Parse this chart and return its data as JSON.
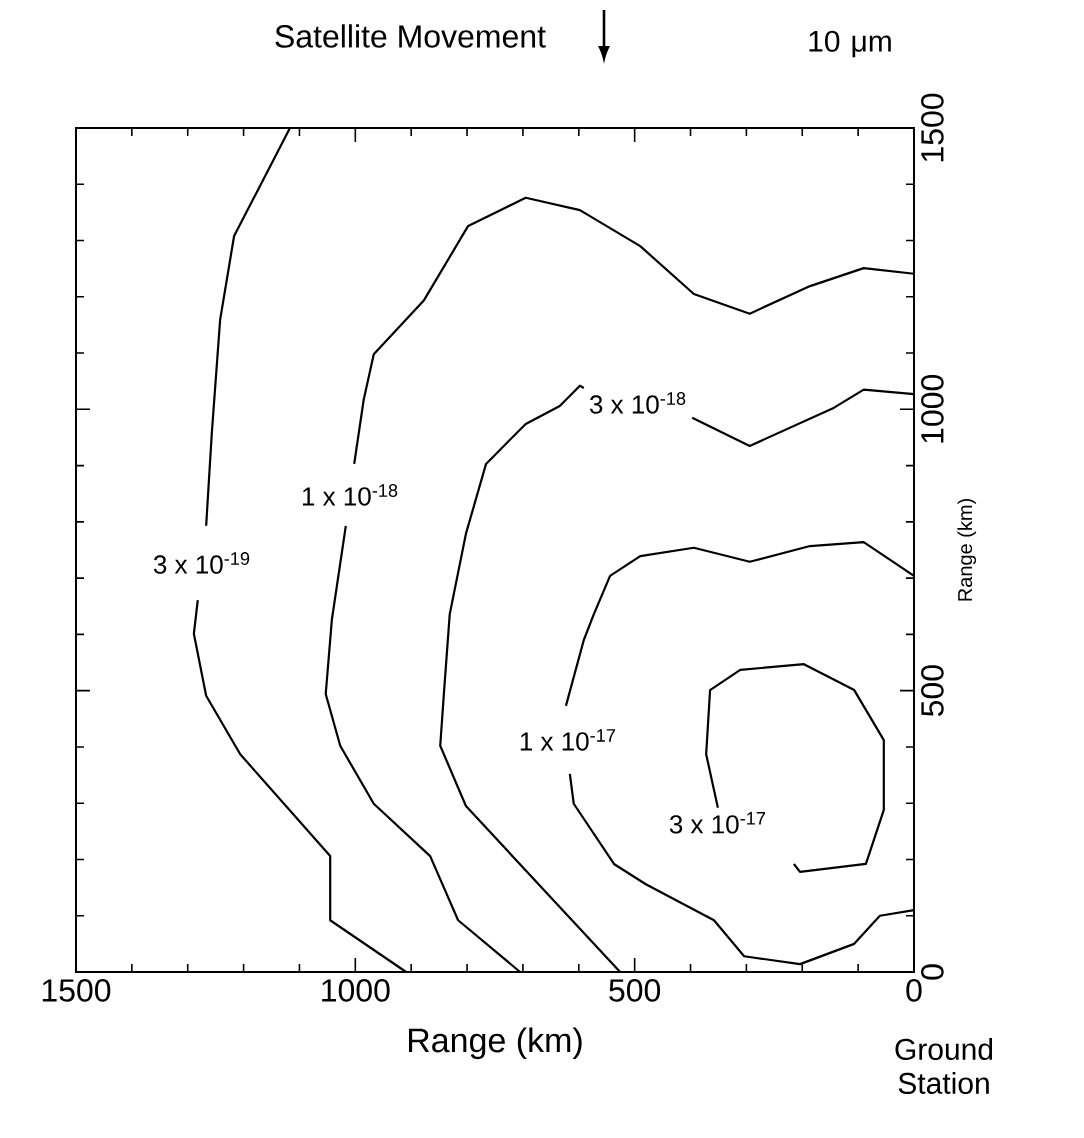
{
  "chart_data": {
    "type": "line",
    "title": "Satellite Movement",
    "annotations": [
      "10 μm",
      "Ground Station"
    ],
    "xlabel": "Range (km)",
    "ylabel": "Range (km)",
    "xlim": [
      1500,
      0
    ],
    "xticks": [
      1500,
      1000,
      500,
      0
    ],
    "ylim": [
      0,
      1500
    ],
    "yticks": [
      0,
      500,
      1000,
      1500
    ],
    "grid": false,
    "legend": false,
    "marker": "none",
    "line_style": "solid",
    "tick_labels": "xy",
    "series": [
      {
        "name": "3 x 10$^{-19}$",
        "color": "#000000",
        "x": [
          1117,
          1217,
          1242,
          1257,
          1267,
          null,
          1282,
          1289,
          1267,
          1206,
          1045,
          1045,
          909
        ],
        "values": [
          1500,
          1308,
          1159,
          956,
          793,
          null,
          661,
          601,
          491,
          387,
          206,
          92,
          0
        ]
      },
      {
        "name": "1 x 10$^{-18}$",
        "color": "#000000",
        "x": [
          705,
          816,
          866,
          967,
          1027,
          1053,
          1042,
          1017,
          null,
          1002,
          985,
          967,
          877,
          798,
          695,
          598,
          490,
          394,
          294,
          186,
          90,
          0
        ],
        "values": [
          0,
          92,
          206,
          299,
          402,
          494,
          626,
          793,
          null,
          903,
          1017,
          1098,
          1194,
          1326,
          1376,
          1354,
          1290,
          1205,
          1170,
          1219,
          1251,
          1241
        ]
      },
      {
        "name": "3 x 10$^{-18}$",
        "color": "#000000",
        "x": [
          526,
          802,
          848,
          841,
          831,
          802,
          766,
          695,
          634,
          598,
          591,
          null,
          397,
          294,
          143,
          90,
          0
        ],
        "values": [
          0,
          295,
          402,
          501,
          636,
          779,
          903,
          974,
          1006,
          1042,
          1038,
          null,
          985,
          935,
          1003,
          1035,
          1027
        ]
      },
      {
        "name": "1 x 10$^{-17}$",
        "color": "#000000",
        "x": [
          0,
          61,
          107,
          204,
          304,
          358,
          480,
          537,
          609,
          616,
          null,
          623,
          591,
          573,
          544,
          490,
          394,
          294,
          186,
          90,
          0
        ],
        "values": [
          110,
          100,
          50,
          14,
          28,
          92,
          156,
          192,
          299,
          352,
          null,
          473,
          590,
          636,
          704,
          739,
          754,
          729,
          757,
          764,
          704
        ]
      },
      {
        "name": "3 x 10$^{-17}$",
        "color": "#000000",
        "x": [
          351,
          372,
          365,
          311,
          197,
          107,
          54,
          54,
          86,
          204,
          215
        ],
        "values": [
          292,
          387,
          501,
          537,
          547,
          501,
          412,
          288,
          192,
          178,
          192
        ]
      }
    ]
  }
}
